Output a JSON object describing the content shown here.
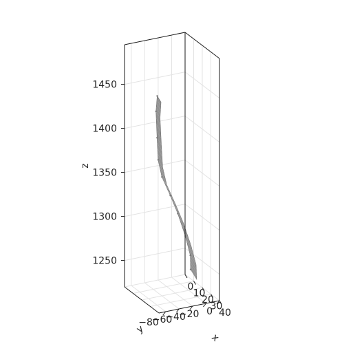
{
  "chart_data": {
    "type": "surface3d",
    "axes": {
      "x": {
        "label": "x",
        "ticks": [
          "0",
          "10",
          "20",
          "30",
          "40"
        ],
        "range": [
          0,
          40
        ]
      },
      "y": {
        "label": "y",
        "ticks": [
          "0",
          "−20",
          "−40",
          "−60",
          "−80"
        ],
        "range": [
          0,
          -90
        ]
      },
      "z": {
        "label": "z",
        "ticks": [
          "1250",
          "1300",
          "1350",
          "1400",
          "1450"
        ],
        "range": [
          1220,
          1495
        ]
      }
    },
    "grid": true,
    "series": [
      {
        "color": "#808080",
        "edge_points": [
          {
            "x": 8,
            "y": -2,
            "z": 1232
          },
          {
            "x": 10,
            "y": -5,
            "z": 1250
          },
          {
            "x": 12,
            "y": -15,
            "z": 1275
          },
          {
            "x": 15,
            "y": -30,
            "z": 1305
          },
          {
            "x": 18,
            "y": -45,
            "z": 1330
          },
          {
            "x": 20,
            "y": -60,
            "z": 1355
          },
          {
            "x": 25,
            "y": -72,
            "z": 1380
          },
          {
            "x": 30,
            "y": -80,
            "z": 1410
          },
          {
            "x": 35,
            "y": -88,
            "z": 1445
          },
          {
            "x": 38,
            "y": -90,
            "z": 1465
          }
        ]
      }
    ]
  }
}
